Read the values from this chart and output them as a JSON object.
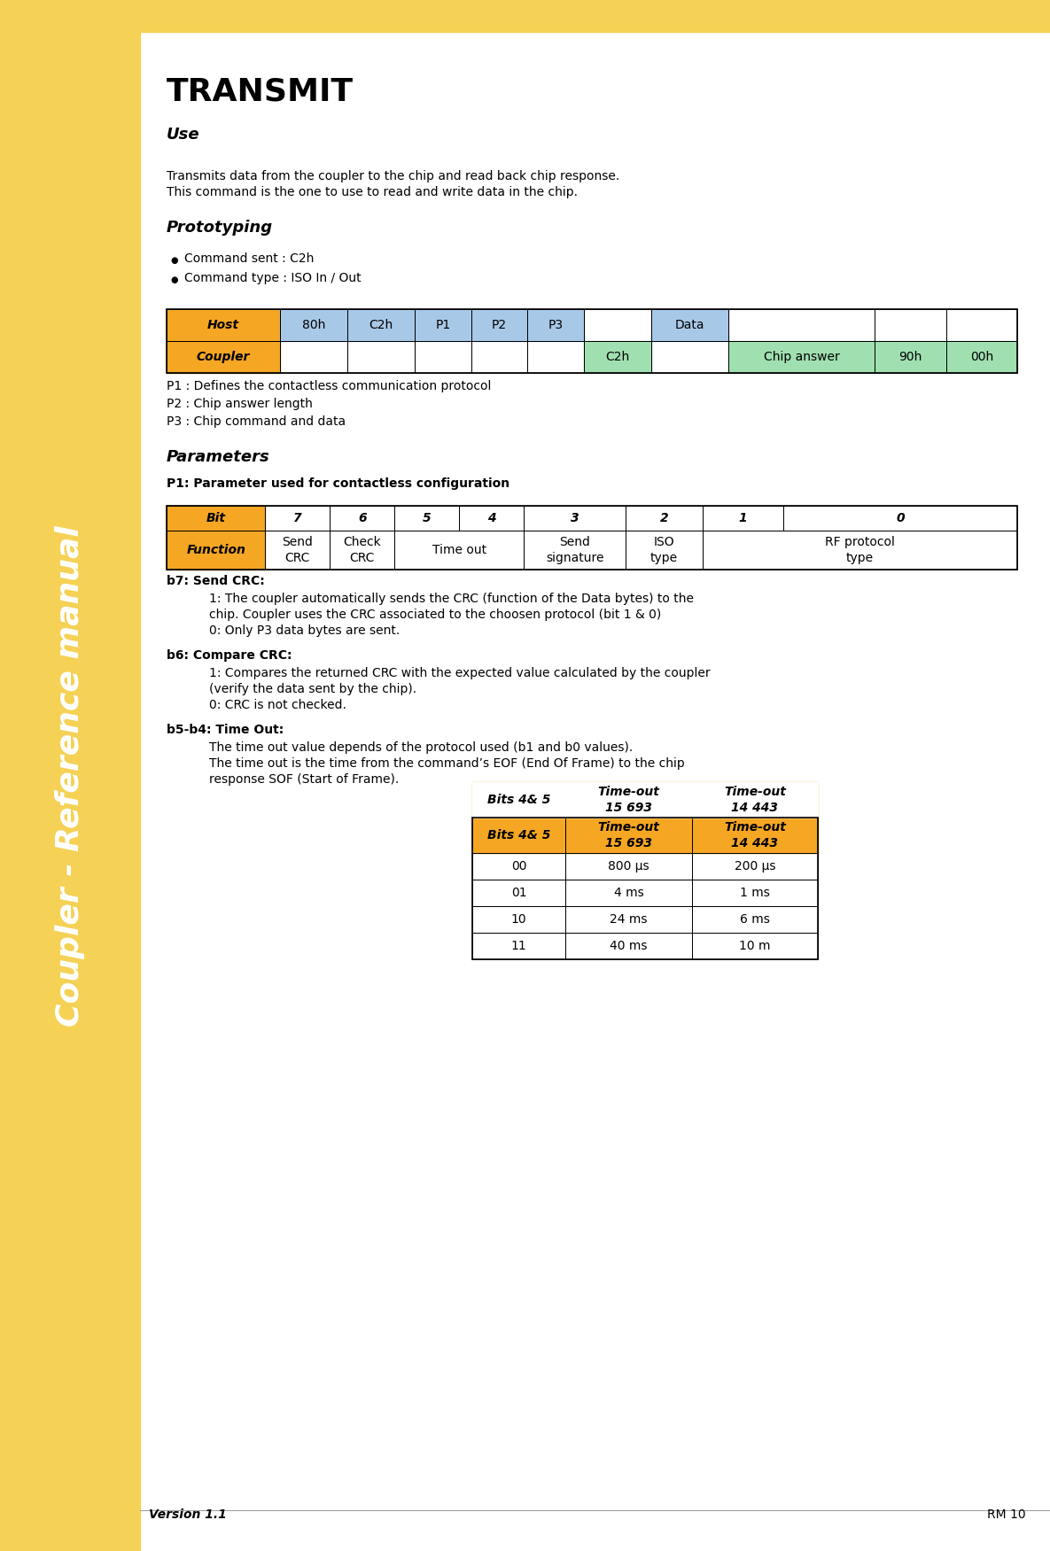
{
  "page_bg": "#ffffff",
  "sidebar_bg": "#f5d155",
  "sidebar_text": "Coupler - Reference manual",
  "sidebar_text_color": "#ffffff",
  "title": "TRANSMIT",
  "section_use": "Use",
  "use_text1": "Transmits data from the coupler to the chip and read back chip response.",
  "use_text2": "This command is the one to use to read and write data in the chip.",
  "section_proto": "Prototyping",
  "bullet1": "Command sent : C2h",
  "bullet2": "Command type : ISO In / Out",
  "proto_table": {
    "host_color": "#f5a623",
    "blue_color": "#a8c8e8",
    "green_color": "#a0e0b0"
  },
  "p_labels": [
    "P1 : Defines the contactless communication protocol",
    "P2 : Chip answer length",
    "P3 : Chip command and data"
  ],
  "section_params": "Parameters",
  "p1_header": "P1: Parameter used for contactless configuration",
  "bit_table_header_color": "#f5a623",
  "b7_header": "b7: Send CRC:",
  "b7_text1": "1: The coupler automatically sends the CRC (function of the Data bytes) to the",
  "b7_text2": "chip. Coupler uses the CRC associated to the choosen protocol (bit 1 & 0)",
  "b7_text3": "0: Only P3 data bytes are sent.",
  "b6_header": "b6: Compare CRC:",
  "b6_text1": "1: Compares the returned CRC with the expected value calculated by the coupler",
  "b6_text2": "(verify the data sent by the chip).",
  "b6_text3": "0: CRC is not checked.",
  "b54_header": "b5-b4: Time Out:",
  "b54_text1": "The time out value depends of the protocol used (b1 and b0 values).",
  "b54_text2": "The time out is the time from the command’s EOF (End Of Frame) to the chip",
  "b54_text3": "response SOF (Start of Frame).",
  "timeout_table": {
    "headers": [
      "Bits 4& 5",
      "Time-out\n15 693",
      "Time-out\n14 443"
    ],
    "rows": [
      [
        "00",
        "800 μs",
        "200 μs"
      ],
      [
        "01",
        "4 ms",
        "1 ms"
      ],
      [
        "10",
        "24 ms",
        "6 ms"
      ],
      [
        "11",
        "40 ms",
        "10 m"
      ]
    ],
    "header_color": "#f5a623"
  },
  "footer_version": "Version 1.1",
  "footer_rm": "RM 10"
}
